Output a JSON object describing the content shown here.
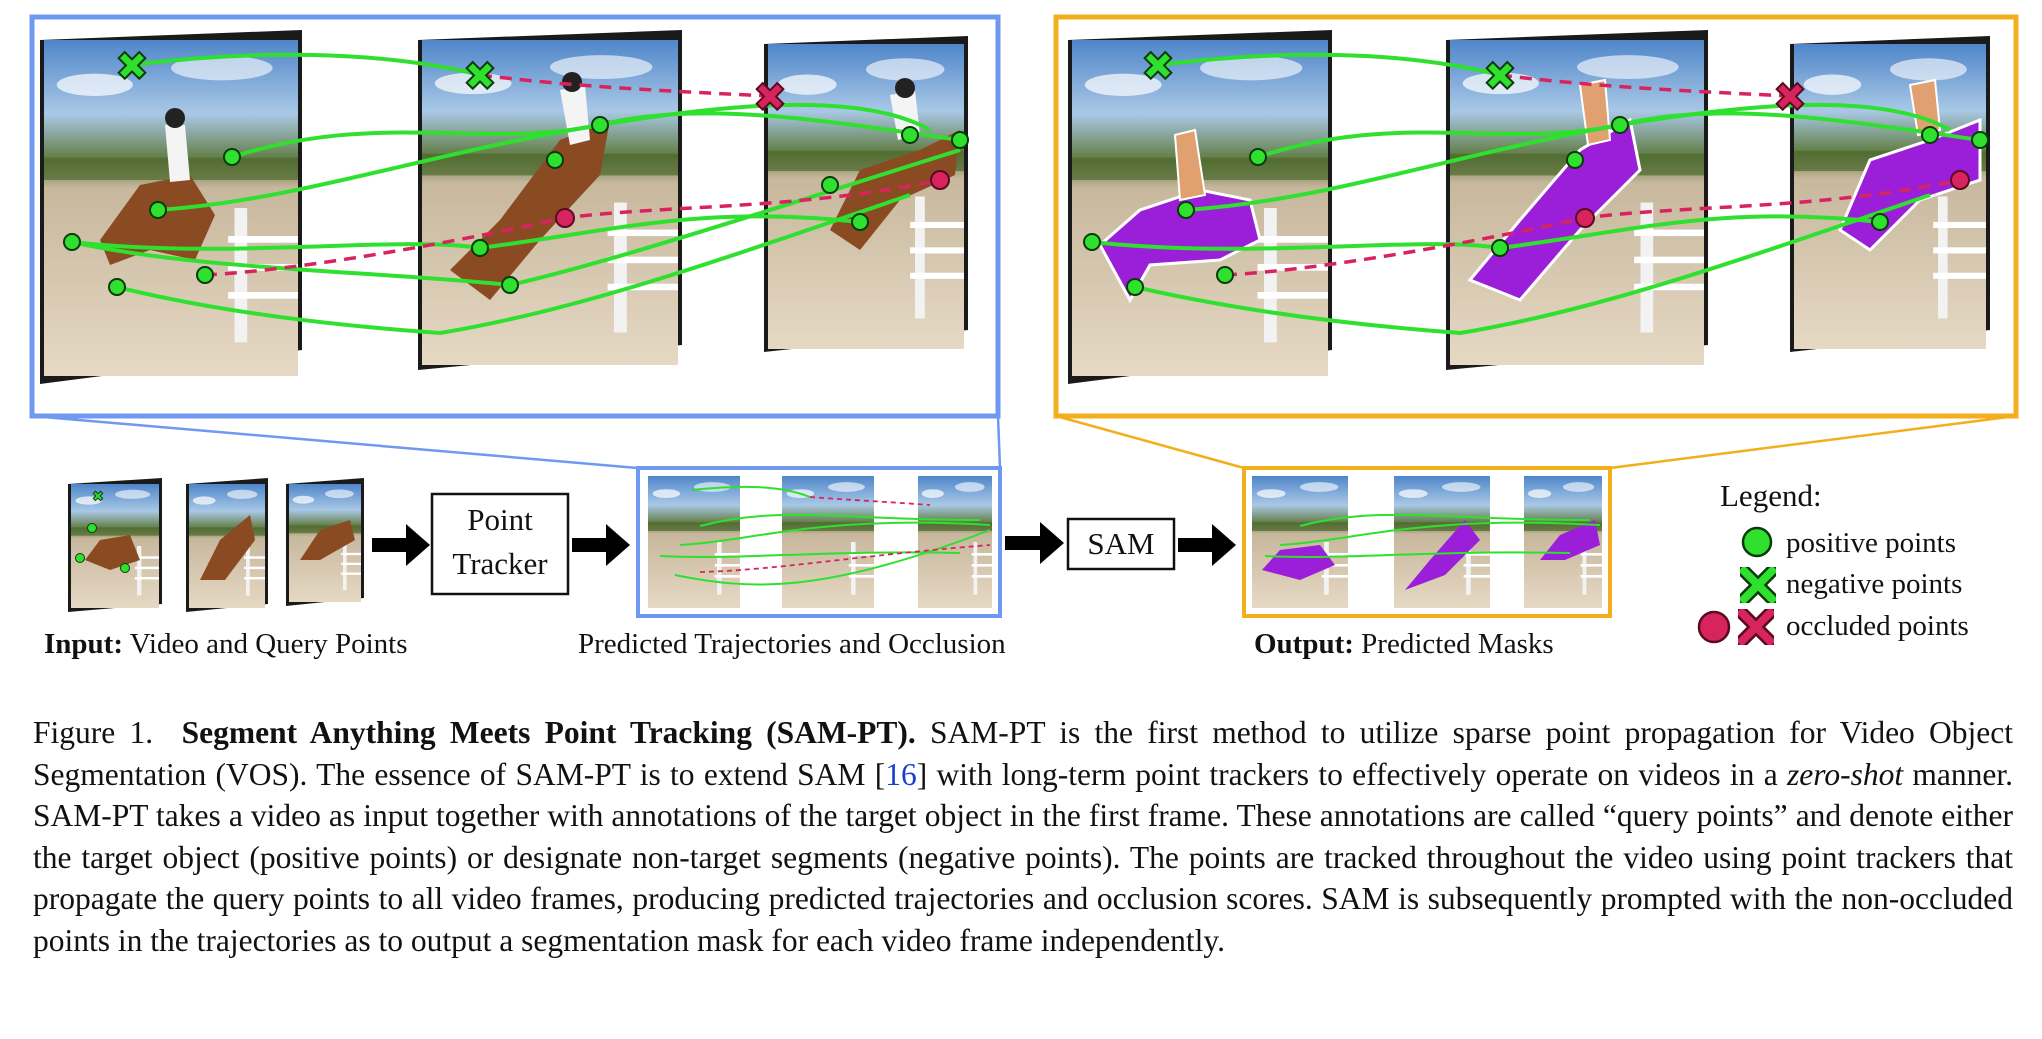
{
  "pipeline": {
    "input_label_bold": "Input:",
    "input_label_rest": " Video and Query Points",
    "tracker_line1": "Point",
    "tracker_line2": "Tracker",
    "trajectories_label": "Predicted Trajectories and Occlusion",
    "sam_label": "SAM",
    "output_label_bold": "Output:",
    "output_label_rest": " Predicted Masks"
  },
  "legend": {
    "title": "Legend:",
    "items": [
      "positive points",
      "negative points",
      "occluded points"
    ]
  },
  "colors": {
    "trajectory_box": "#6f98f0",
    "output_box": "#f2ae1b",
    "positive": "#2fe02f",
    "occluded": "#d7245e",
    "mask": "#9b1fd9"
  },
  "caption": {
    "fig": "Figure 1.",
    "title": "Segment Anything Meets Point Tracking (SAM-PT).",
    "t1": "SAM-PT is the first method to utilize sparse point propagation for Video Object Segmentation (VOS). The essence of SAM-PT is to extend SAM [",
    "ref": "16",
    "t2": "] with long-term point trackers to effectively operate on videos in a ",
    "italic": "zero-shot",
    "t3": " manner. SAM-PT takes a video as input together with annotations of the target object in the first frame. These annotations are called “query points” and denote either the target object (positive points) or designate non-target segments (negative points). The points are tracked throughout the video using point trackers that propagate the query points to all video frames, producing predicted trajectories and occlusion scores. SAM is subsequently prompted with the non-occluded points in the trajectories as to output a segmentation mask for each video frame independently."
  }
}
